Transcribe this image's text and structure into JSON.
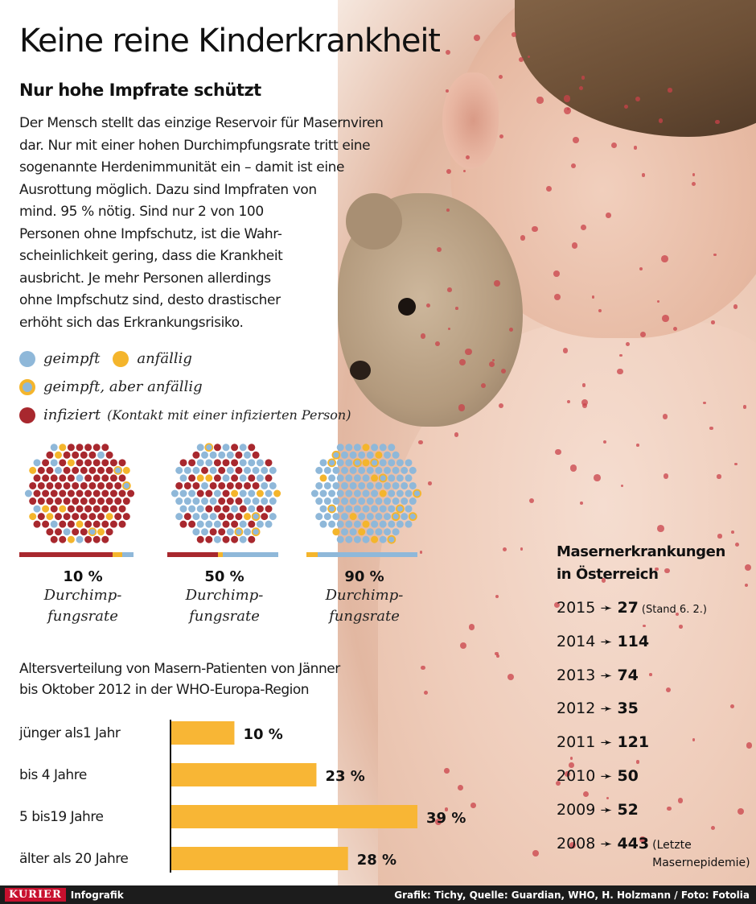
{
  "title": "Keine reine Kinderkrankheit",
  "subtitle": "Nur hohe Impfrate schützt",
  "intro_lines": [
    "Der Mensch stellt das einzige Reservoir für Masernviren",
    "dar. Nur mit einer hohen Durchimpfungsrate tritt eine",
    "sogenannte Herdenimmunität ein – damit ist eine",
    "Ausrottung möglich. Dazu sind Impfraten von",
    "mind. 95 % nötig. Sind nur 2 von 100",
    "Personen ohne Impfschutz, ist die Wahr-",
    "scheinlichkeit gering, dass die Krankheit",
    "ausbricht. Je mehr Personen allerdings",
    "ohne Impfschutz sind, desto drastischer",
    "erhöht sich das Erkrankungsrisiko."
  ],
  "legend": {
    "vaccinated": "geimpft",
    "susceptible": "anfällig",
    "vaccinated_susceptible": "geimpft, aber anfällig",
    "infected": "infiziert",
    "infected_note": "(Kontakt mit einer infizierten Person)"
  },
  "colors": {
    "vaccinated": "#8fb8d9",
    "susceptible": "#f4b52c",
    "infected": "#a8282e",
    "bar": "#f8b635"
  },
  "simulations": [
    {
      "percent": "10 %",
      "label": "Durchimp-\nfungsrate",
      "rate": 0.1,
      "bar": {
        "infected": 0.82,
        "susceptible": 0.08,
        "vaccinated": 0.1
      }
    },
    {
      "percent": "50 %",
      "label": "Durchimp-\nfungsrate",
      "rate": 0.5,
      "bar": {
        "infected": 0.46,
        "susceptible": 0.04,
        "vaccinated": 0.5
      }
    },
    {
      "percent": "90 %",
      "label": "Durchimp-\nfungsrate",
      "rate": 0.9,
      "bar": {
        "infected": 0.0,
        "susceptible": 0.1,
        "vaccinated": 0.9
      }
    }
  ],
  "age_title_lines": [
    "Altersverteilung von Masern-Patienten von Jänner",
    "bis Oktober 2012 in der WHO-Europa-Region"
  ],
  "chart_data": [
    {
      "type": "bar",
      "title": "Altersverteilung von Masern-Patienten von Jänner bis Oktober 2012 in der WHO-Europa-Region",
      "categories": [
        "jünger als1 Jahr",
        "bis 4 Jahre",
        "5 bis19 Jahre",
        "älter als 20 Jahre"
      ],
      "values": [
        10,
        23,
        39,
        28
      ],
      "value_labels": [
        "10 %",
        "23 %",
        "39 %",
        "28 %"
      ],
      "orientation": "horizontal",
      "xlim": [
        0,
        40
      ],
      "grid": false
    },
    {
      "type": "table",
      "title": "Masernerkrankungen in Österreich",
      "title_lines": [
        "Masernerkrankungen",
        "in Österreich"
      ],
      "arrow": "➛",
      "rows": [
        {
          "year": "2015",
          "value": 27,
          "note": "(Stand 6. 2.)"
        },
        {
          "year": "2014",
          "value": 114,
          "note": ""
        },
        {
          "year": "2013",
          "value": 74,
          "note": ""
        },
        {
          "year": "2012",
          "value": 35,
          "note": ""
        },
        {
          "year": "2011",
          "value": 121,
          "note": ""
        },
        {
          "year": "2010",
          "value": 50,
          "note": ""
        },
        {
          "year": "2009",
          "value": 52,
          "note": ""
        },
        {
          "year": "2008",
          "value": 443,
          "note": "(Letzte",
          "note2": "Masernepidemie)"
        }
      ]
    }
  ],
  "footer": {
    "logo": "KURIER",
    "section": "Infografik",
    "credit": "Grafik: Tichy, Quelle: Guardian, WHO, H. Holzmann / Foto: Fotolia"
  }
}
